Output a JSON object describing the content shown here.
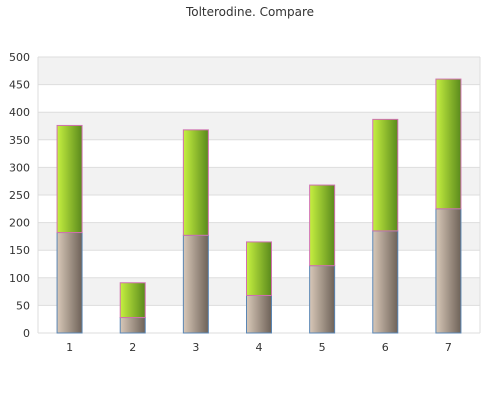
{
  "chart_data": {
    "type": "bar",
    "stacked": true,
    "title": "Tolterodine. Compare",
    "xlabel": "",
    "ylabel": "",
    "categories": [
      "1",
      "2",
      "3",
      "4",
      "5",
      "6",
      "7"
    ],
    "series": [
      {
        "values": [
          182,
          28,
          177,
          68,
          122,
          185,
          225
        ]
      },
      {
        "values": [
          194,
          63,
          191,
          97,
          146,
          202,
          235
        ]
      }
    ],
    "ylim": [
      0,
      500
    ],
    "yticks": [
      0,
      50,
      100,
      150,
      200,
      250,
      300,
      350,
      400,
      450,
      500
    ],
    "grid": true,
    "legend": "none",
    "colors": {
      "lower_light": "#d8c8b8",
      "lower_dark": "#6e6258",
      "lower_outline": "#5a86b4",
      "upper_light": "#c6f040",
      "upper_dark": "#5a8a1c",
      "upper_outline": "#d070b0",
      "band_fill": "#f2f2f2",
      "grid_line": "#dddddd"
    }
  }
}
